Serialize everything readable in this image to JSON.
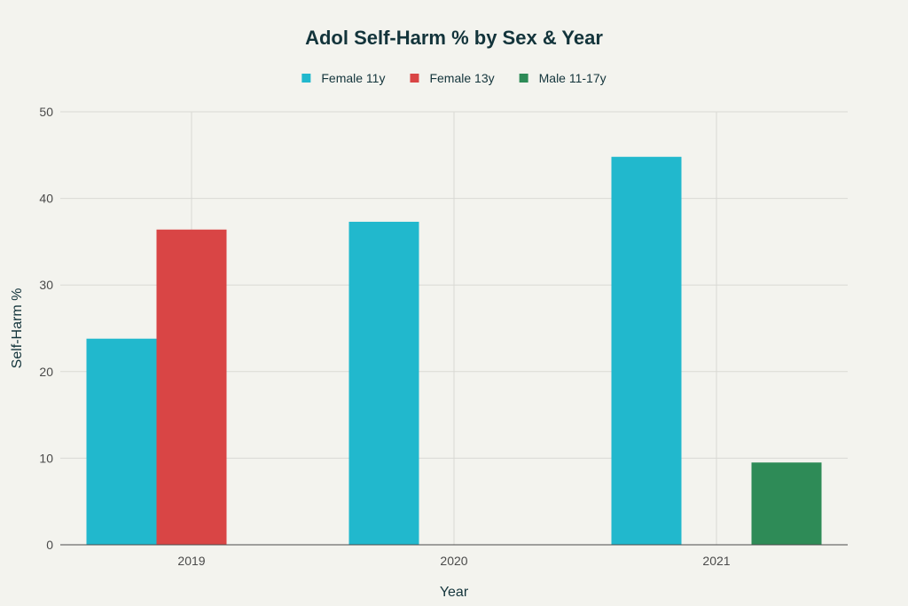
{
  "chart_data": {
    "type": "bar",
    "title": "Adol Self-Harm % by Sex & Year",
    "xlabel": "Year",
    "ylabel": "Self-Harm %",
    "categories": [
      "2019",
      "2020",
      "2021"
    ],
    "ylim": [
      0,
      50
    ],
    "yticks": [
      0,
      10,
      20,
      30,
      40,
      50
    ],
    "grid": true,
    "legend_position": "top-center",
    "series": [
      {
        "name": "Female 11y",
        "color": "#21b8cd",
        "values": [
          23.8,
          37.3,
          44.8
        ]
      },
      {
        "name": "Female 13y",
        "color": "#d94545",
        "values": [
          36.4,
          null,
          null
        ]
      },
      {
        "name": "Male 11-17y",
        "color": "#2e8b57",
        "values": [
          null,
          null,
          9.5
        ]
      }
    ]
  }
}
